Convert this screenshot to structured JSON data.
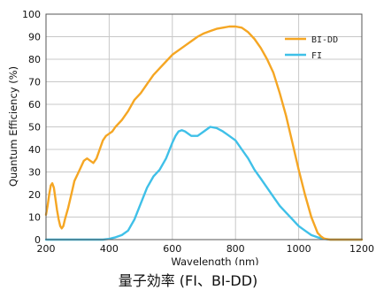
{
  "chart_data": {
    "type": "line",
    "title": "量子効率 (FI、BI-DD)",
    "xlabel": "Wavelength (nm)",
    "ylabel": "Quantum Efficiency (%)",
    "xlim": [
      200,
      1200
    ],
    "ylim": [
      0,
      100
    ],
    "xticks": [
      200,
      400,
      600,
      800,
      1000,
      1200
    ],
    "yticks": [
      0,
      10,
      20,
      30,
      40,
      50,
      60,
      70,
      80,
      90,
      100
    ],
    "grid": true,
    "legend_position": "top-right",
    "series": [
      {
        "name": "BI-DD",
        "color": "#f5a623",
        "x": [
          200,
          205,
          210,
          215,
          220,
          225,
          230,
          235,
          240,
          245,
          250,
          255,
          260,
          270,
          280,
          290,
          300,
          310,
          320,
          330,
          340,
          350,
          360,
          370,
          380,
          390,
          400,
          410,
          420,
          440,
          460,
          480,
          500,
          520,
          540,
          560,
          580,
          600,
          620,
          640,
          660,
          680,
          700,
          720,
          740,
          760,
          780,
          800,
          820,
          840,
          860,
          880,
          900,
          920,
          940,
          960,
          980,
          1000,
          1020,
          1040,
          1060,
          1070,
          1080,
          1090,
          1100,
          1120,
          1150,
          1200
        ],
        "y": [
          11,
          15,
          20,
          24,
          25,
          23,
          18,
          13,
          9,
          6,
          5,
          6,
          9,
          14,
          20,
          26,
          29,
          32,
          35,
          36,
          35,
          34,
          36,
          40,
          44,
          46,
          47,
          48,
          50,
          53,
          57,
          62,
          65,
          69,
          73,
          76,
          79,
          82,
          84,
          86,
          88,
          90,
          91.5,
          92.5,
          93.5,
          94,
          94.5,
          94.5,
          94,
          92,
          89,
          85,
          80,
          74,
          65,
          55,
          43,
          31,
          20,
          10,
          3,
          1.5,
          0.5,
          0.2,
          0,
          0,
          0,
          0
        ]
      },
      {
        "name": "FI",
        "color": "#3fc0e8",
        "x": [
          200,
          300,
          380,
          400,
          420,
          440,
          460,
          480,
          500,
          520,
          540,
          560,
          580,
          600,
          610,
          620,
          630,
          640,
          660,
          680,
          700,
          720,
          740,
          760,
          780,
          800,
          820,
          840,
          860,
          880,
          900,
          920,
          940,
          960,
          980,
          1000,
          1020,
          1040,
          1060,
          1080,
          1100,
          1200
        ],
        "y": [
          0,
          0,
          0,
          0.3,
          1,
          2,
          4,
          9,
          16,
          23,
          28,
          31,
          36,
          43,
          46,
          48,
          48.5,
          48,
          46,
          46,
          48,
          50,
          49.5,
          48,
          46,
          44,
          40,
          36,
          31,
          27,
          23,
          19,
          15,
          12,
          9,
          6,
          4,
          2,
          1,
          0.3,
          0,
          0
        ]
      }
    ]
  }
}
